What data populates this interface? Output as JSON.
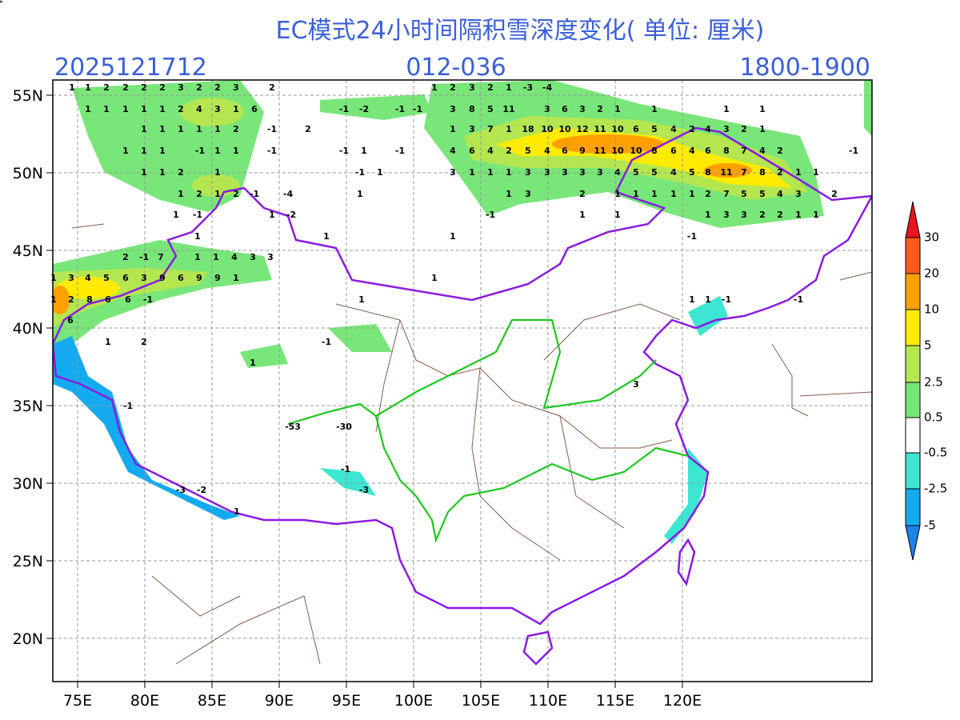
{
  "header": {
    "title": "EC模式24小时间隔积雪深度变化( 单位: 厘米)",
    "date": "2025121712",
    "forecast": "012-036",
    "time": "1800-1900"
  },
  "map": {
    "lat_ticks": [
      {
        "value": 55,
        "label": "55N"
      },
      {
        "value": 50,
        "label": "50N"
      },
      {
        "value": 45,
        "label": "45N"
      },
      {
        "value": 40,
        "label": "40N"
      },
      {
        "value": 35,
        "label": "35N"
      },
      {
        "value": 30,
        "label": "30N"
      },
      {
        "value": 25,
        "label": "25N"
      },
      {
        "value": 20,
        "label": "20N"
      }
    ],
    "lon_ticks": [
      {
        "value": 75,
        "label": "75E"
      },
      {
        "value": 80,
        "label": "80E"
      },
      {
        "value": 85,
        "label": "85E"
      },
      {
        "value": 90,
        "label": "90E"
      },
      {
        "value": 95,
        "label": "95E"
      },
      {
        "value": 100,
        "label": "100E"
      },
      {
        "value": 105,
        "label": "105E"
      },
      {
        "value": 110,
        "label": "110E"
      },
      {
        "value": 115,
        "label": "115E"
      },
      {
        "value": 120,
        "label": "120E"
      }
    ],
    "labels": [
      1,
      1,
      2,
      2,
      2,
      2,
      3,
      2,
      2,
      3,
      2,
      1,
      2,
      3,
      2,
      1,
      -3,
      -4,
      1,
      1,
      1,
      1,
      1,
      2,
      4,
      3,
      1,
      6,
      -1,
      -2,
      -1,
      -1,
      3,
      8,
      5,
      11,
      3,
      6,
      3,
      2,
      1,
      1,
      1,
      1,
      1,
      1,
      1,
      1,
      1,
      2,
      -1,
      2,
      1,
      3,
      7,
      1,
      18,
      10,
      10,
      12,
      11,
      10,
      6,
      5,
      4,
      2,
      4,
      3,
      2,
      1,
      1,
      1,
      1,
      -1,
      1,
      1,
      -1,
      -1,
      1,
      -1,
      4,
      6,
      4,
      2,
      5,
      4,
      6,
      9,
      11,
      10,
      10,
      8,
      6,
      4,
      6,
      8,
      7,
      4,
      2,
      -1,
      1,
      1,
      2,
      1,
      -1,
      1,
      3,
      1,
      1,
      1,
      3,
      3,
      3,
      3,
      3,
      4,
      5,
      5,
      4,
      5,
      8,
      11,
      7,
      8,
      2,
      1,
      1,
      1,
      2,
      1,
      2,
      -1,
      -4,
      1,
      1,
      3,
      2,
      1,
      1,
      1,
      1,
      1,
      2,
      7,
      5,
      5,
      4,
      3,
      2,
      1,
      -1,
      1,
      -2,
      -1,
      1,
      1,
      1,
      3,
      3,
      2,
      2,
      1,
      1,
      1,
      1,
      1,
      -1,
      1,
      1,
      1,
      1,
      -1,
      -1,
      -1,
      1,
      2,
      1,
      3,
      -1,
      -53,
      -30,
      -1,
      -3,
      -3,
      -2,
      1,
      2,
      -1,
      7,
      1,
      1,
      4,
      3,
      3,
      1,
      3,
      4,
      5,
      6,
      3,
      9,
      6,
      9,
      9,
      1,
      1,
      2,
      8,
      6,
      6,
      -1,
      6,
      2
    ]
  },
  "colorbar": {
    "levels": [
      30,
      20,
      10,
      5,
      2.5,
      0.5,
      -0.5,
      -2.5,
      -5
    ],
    "colors": [
      "#e8141e",
      "#ff5a1e",
      "#ffa000",
      "#ffeb00",
      "#b4e650",
      "#78e678",
      "#ffffff",
      "#3ce6d2",
      "#14aaf0",
      "#1e82e6"
    ]
  }
}
